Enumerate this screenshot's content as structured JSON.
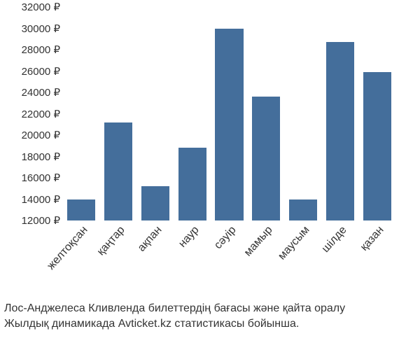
{
  "chart": {
    "type": "bar",
    "ylim": [
      12000,
      32000
    ],
    "ytick_step": 2000,
    "y_suffix": " ₽",
    "yticks": [
      12000,
      14000,
      16000,
      18000,
      20000,
      22000,
      24000,
      26000,
      28000,
      30000,
      32000
    ],
    "bar_color": "#446e9b",
    "background_color": "#ffffff",
    "text_color": "#333333",
    "label_fontsize": 15,
    "bar_width": 0.76,
    "categories": [
      "желтоқсан",
      "қаңтар",
      "ақпан",
      "наур",
      "сәуір",
      "мамыр",
      "маусым",
      "шілде",
      "қазан"
    ],
    "values": [
      14000,
      21200,
      15200,
      18800,
      30000,
      23600,
      14000,
      28700,
      25900
    ]
  },
  "caption": {
    "line1": "Лос-Анджелеса Кливленда билеттердің бағасы және қайта оралу",
    "line2": "Жылдық динамикада Avticket.kz статистикасы бойынша."
  }
}
